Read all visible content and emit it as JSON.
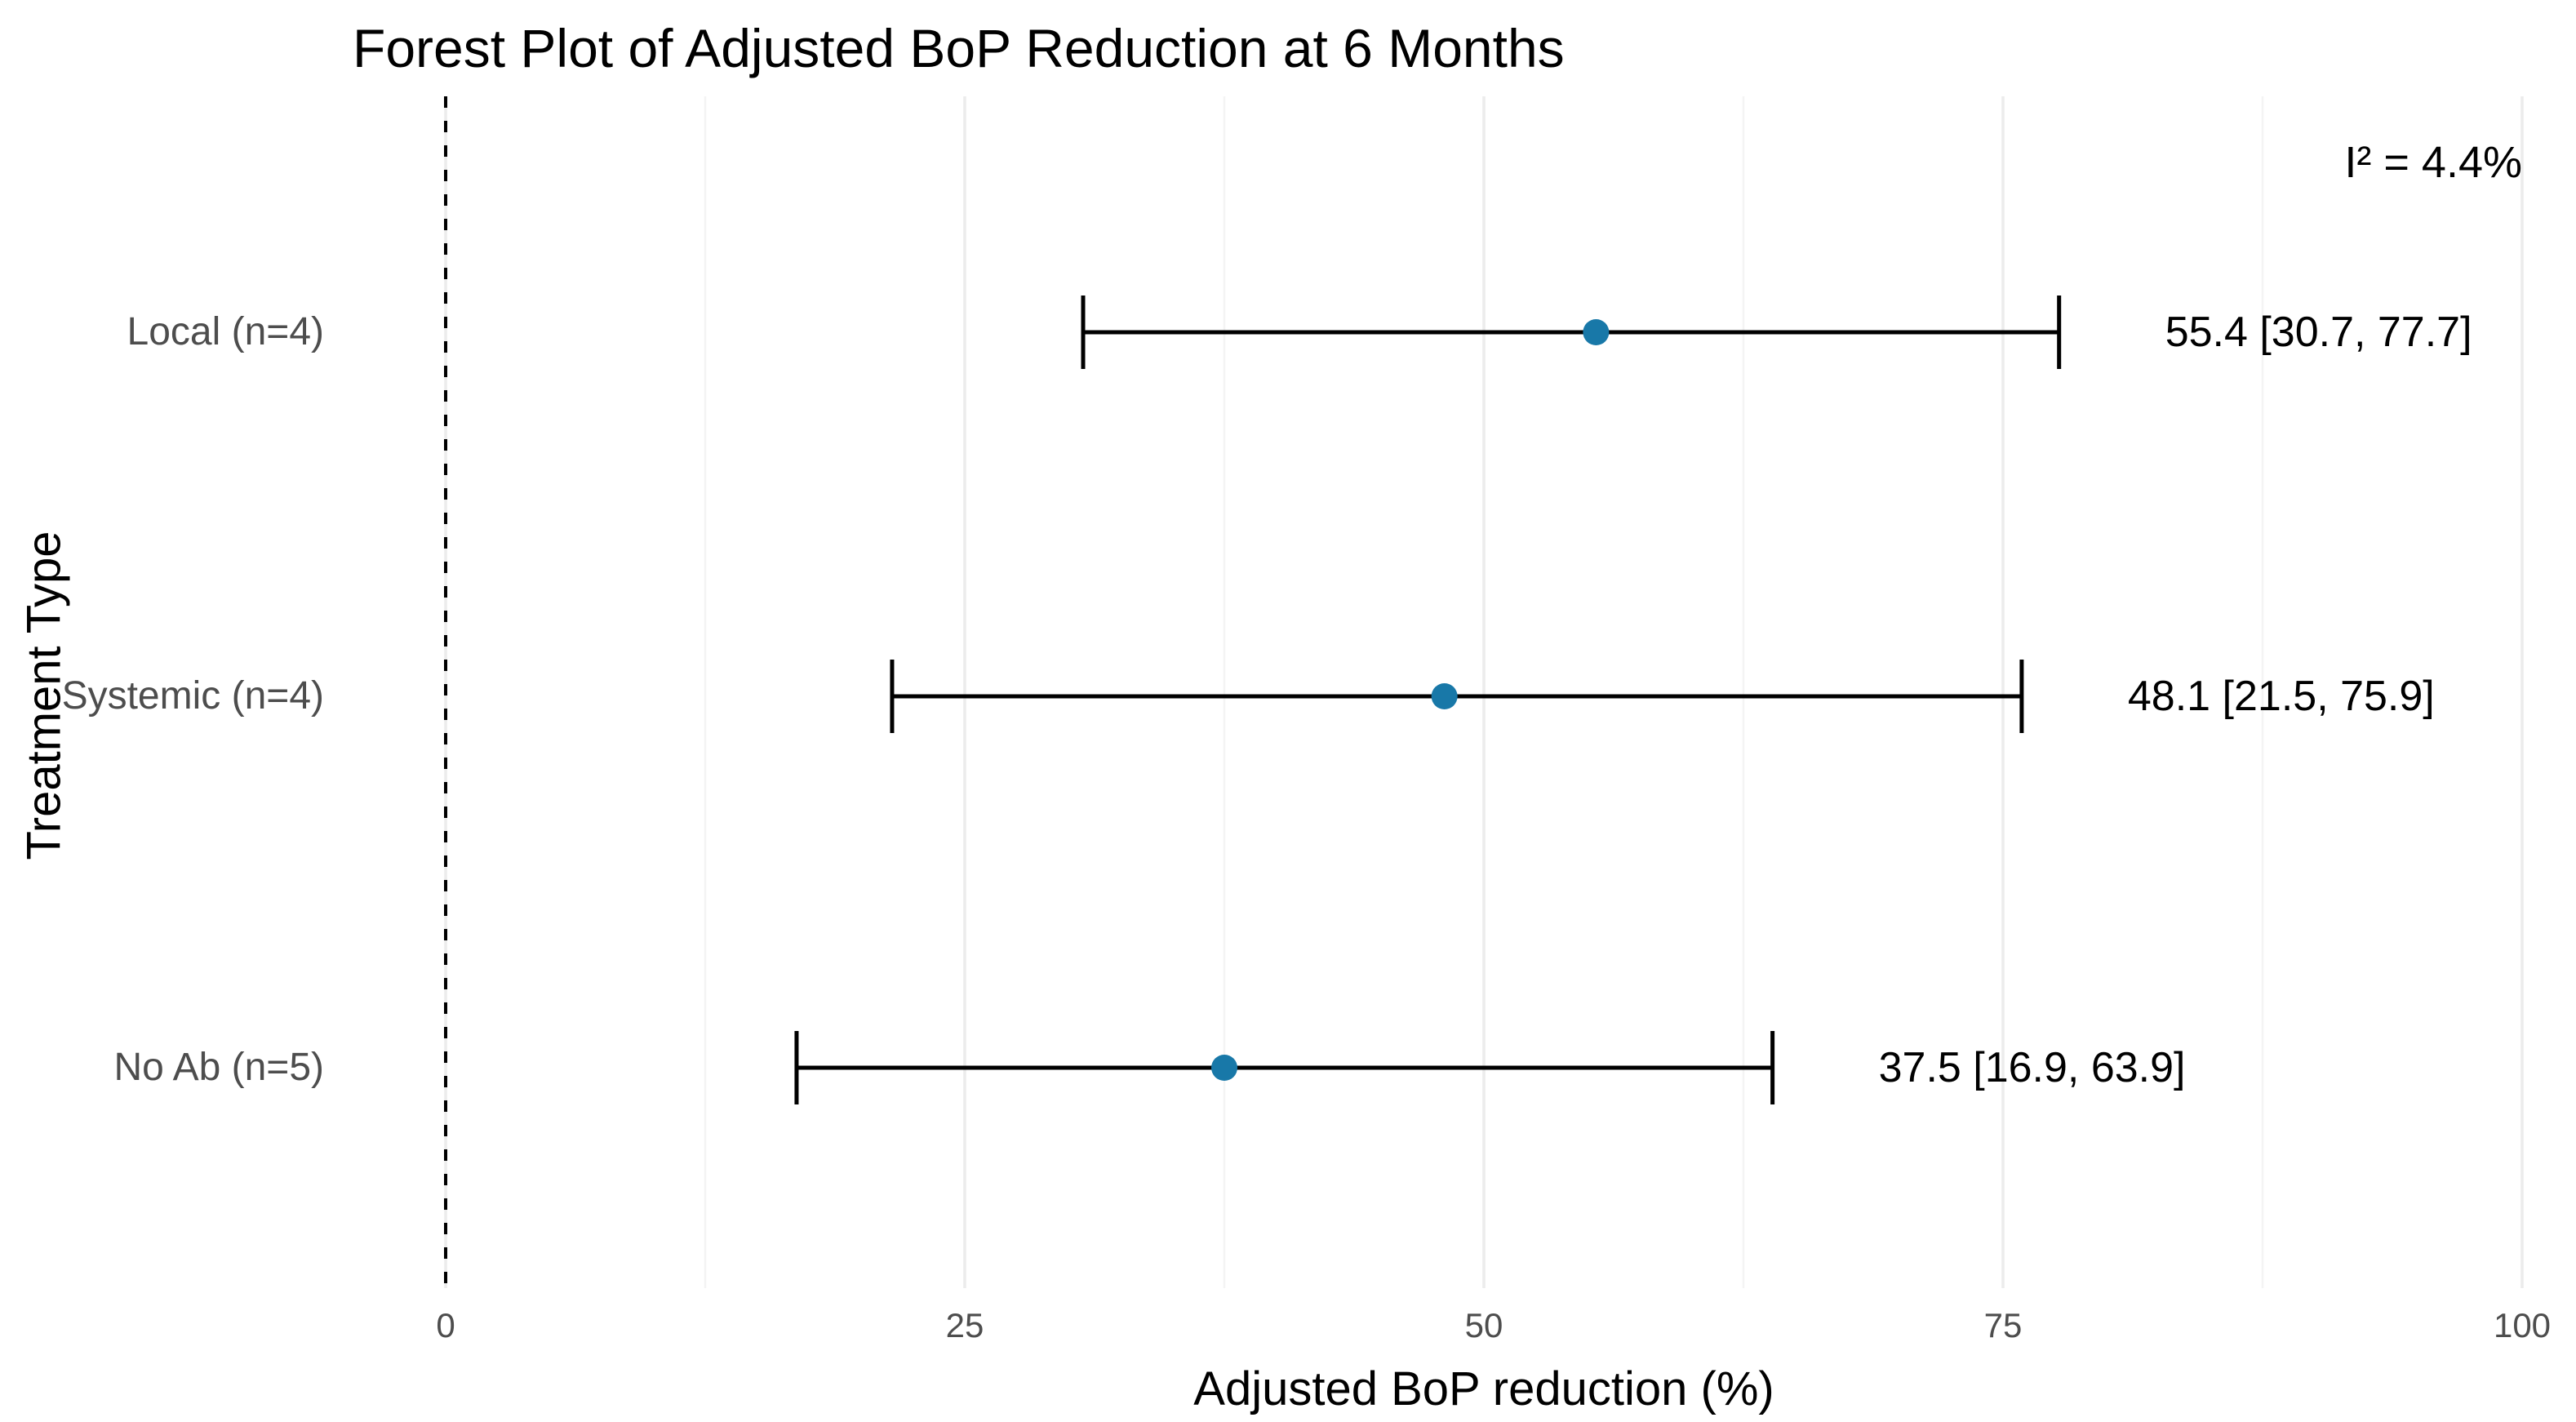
{
  "chart_data": {
    "type": "scatter",
    "subtype": "forest-plot",
    "title": "Forest Plot of Adjusted BoP Reduction at 6 Months",
    "xlabel": "Adjusted BoP reduction (%)",
    "ylabel": "Treatment Type",
    "annotation": "I² = 4.4%",
    "xlim": [
      0,
      100
    ],
    "x_major_ticks": [
      0,
      25,
      50,
      75,
      100
    ],
    "x_tick_labels": [
      "0",
      "25",
      "50",
      "75",
      "100"
    ],
    "x_minor_ticks": [
      12.5,
      37.5,
      62.5,
      87.5
    ],
    "zero_line_x": 0,
    "grid": "vertical-only",
    "legend": "none",
    "rows": [
      {
        "label": "Local (n=4)",
        "estimate": 55.4,
        "ci_low": 30.7,
        "ci_high": 77.7,
        "value_label": "55.4 [30.7, 77.7]"
      },
      {
        "label": "Systemic (n=4)",
        "estimate": 48.1,
        "ci_low": 21.5,
        "ci_high": 75.9,
        "value_label": "48.1 [21.5, 75.9]"
      },
      {
        "label": "No Ab (n=5)",
        "estimate": 37.5,
        "ci_low": 16.9,
        "ci_high": 63.9,
        "value_label": "37.5 [16.9, 63.9]"
      }
    ],
    "colors": {
      "point": "#1878A8",
      "error_bar": "#000000",
      "zero_line": "#000000",
      "axis_text": "#4D4D4D",
      "title_text": "#000000",
      "grid_major": "#ECECEC",
      "grid_minor": "#F4F4F4",
      "background": "#FFFFFF"
    }
  }
}
